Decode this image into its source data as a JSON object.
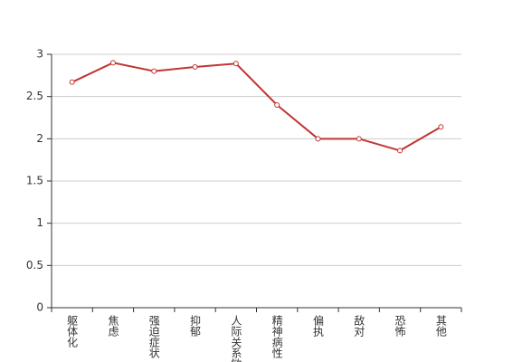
{
  "chart_data": {
    "type": "line",
    "categories": [
      "躯体化",
      "焦虑",
      "强迫症状",
      "抑郁",
      "人际关系敏感",
      "精神病性",
      "偏执",
      "敌对",
      "恐怖",
      "其他"
    ],
    "series": [
      {
        "color": "#c23531",
        "values": [
          2.67,
          2.9,
          2.8,
          2.85,
          2.89,
          2.4,
          2.0,
          2.0,
          1.86,
          2.14
        ]
      }
    ],
    "ylim": [
      0,
      3
    ],
    "yticks": [
      0,
      0.5,
      1,
      1.5,
      2,
      2.5,
      3
    ],
    "grid": true
  }
}
